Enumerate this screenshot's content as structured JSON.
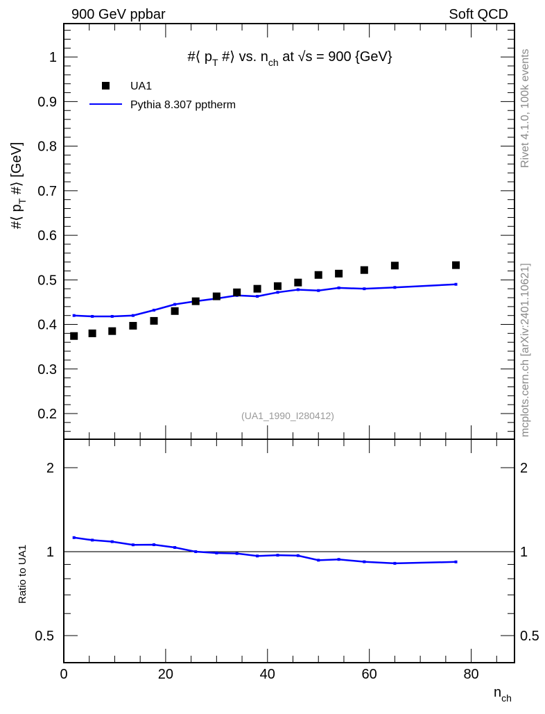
{
  "header": {
    "left": "900 GeV ppbar",
    "right": "Soft QCD"
  },
  "side_labels": {
    "top": "Rivet 4.1.0,  100k events",
    "bottom": "mcplots.cern.ch [arXiv:2401.10621]"
  },
  "watermark": "(UA1_1990_I280412)",
  "colors": {
    "data": "#000000",
    "mc": "#0000ff"
  },
  "chart_data": [
    {
      "type": "scatter",
      "title": "#⟨ p",
      "title_parts": {
        "a": "#⟨ p",
        "a_sub": "T",
        "b": " #⟩ vs. n",
        "b_sub": "ch",
        "c": " at √s = 900 {GeV}"
      },
      "ylabel": "#⟨ p_T #⟩ [GeV]",
      "ylabel_parts": {
        "a": "#⟨ p",
        "sub": "T",
        "b": " #⟩ [GeV]"
      },
      "xlabel": "n_ch",
      "xlim": [
        0,
        88.5
      ],
      "ylim": [
        0.1424,
        1.075
      ],
      "yticks": [
        "0.2",
        "0.3",
        "0.4",
        "0.5",
        "0.6",
        "0.7",
        "0.8",
        "0.9",
        "1"
      ],
      "legend": {
        "placement": "top-left",
        "entries": [
          "UA1",
          "Pythia 8.307 pptherm"
        ]
      },
      "x": [
        2,
        5.6,
        9.5,
        13.6,
        17.7,
        21.8,
        25.9,
        30,
        34,
        38,
        42,
        46,
        50,
        54,
        59,
        65,
        77
      ],
      "series": [
        {
          "name": "UA1",
          "style": "markers",
          "values": [
            0.374,
            0.38,
            0.385,
            0.397,
            0.408,
            0.43,
            0.452,
            0.463,
            0.472,
            0.48,
            0.486,
            0.494,
            0.511,
            0.514,
            0.522,
            0.532,
            0.533
          ]
        },
        {
          "name": "Pythia 8.307 pptherm",
          "style": "line",
          "values": [
            0.42,
            0.418,
            0.418,
            0.42,
            0.432,
            0.445,
            0.452,
            0.458,
            0.465,
            0.463,
            0.472,
            0.478,
            0.476,
            0.482,
            0.48,
            0.483,
            0.49
          ]
        }
      ]
    },
    {
      "type": "line",
      "ylabel": "Ratio to UA1",
      "xlabel": "n_ch",
      "xlabel_parts": {
        "a": "n",
        "sub": "ch"
      },
      "yscale": "log",
      "ylim": [
        0.4,
        2.53
      ],
      "yticks": [
        "0.5",
        "1",
        "2"
      ],
      "xticks": [
        "0",
        "20",
        "40",
        "60",
        "80"
      ],
      "series": [
        {
          "name": "Pythia 8.307 pptherm / UA1",
          "values": [
            1.123,
            1.1,
            1.086,
            1.058,
            1.059,
            1.035,
            1.0,
            0.989,
            0.985,
            0.965,
            0.971,
            0.968,
            0.932,
            0.938,
            0.92,
            0.908,
            0.919
          ]
        }
      ]
    }
  ]
}
